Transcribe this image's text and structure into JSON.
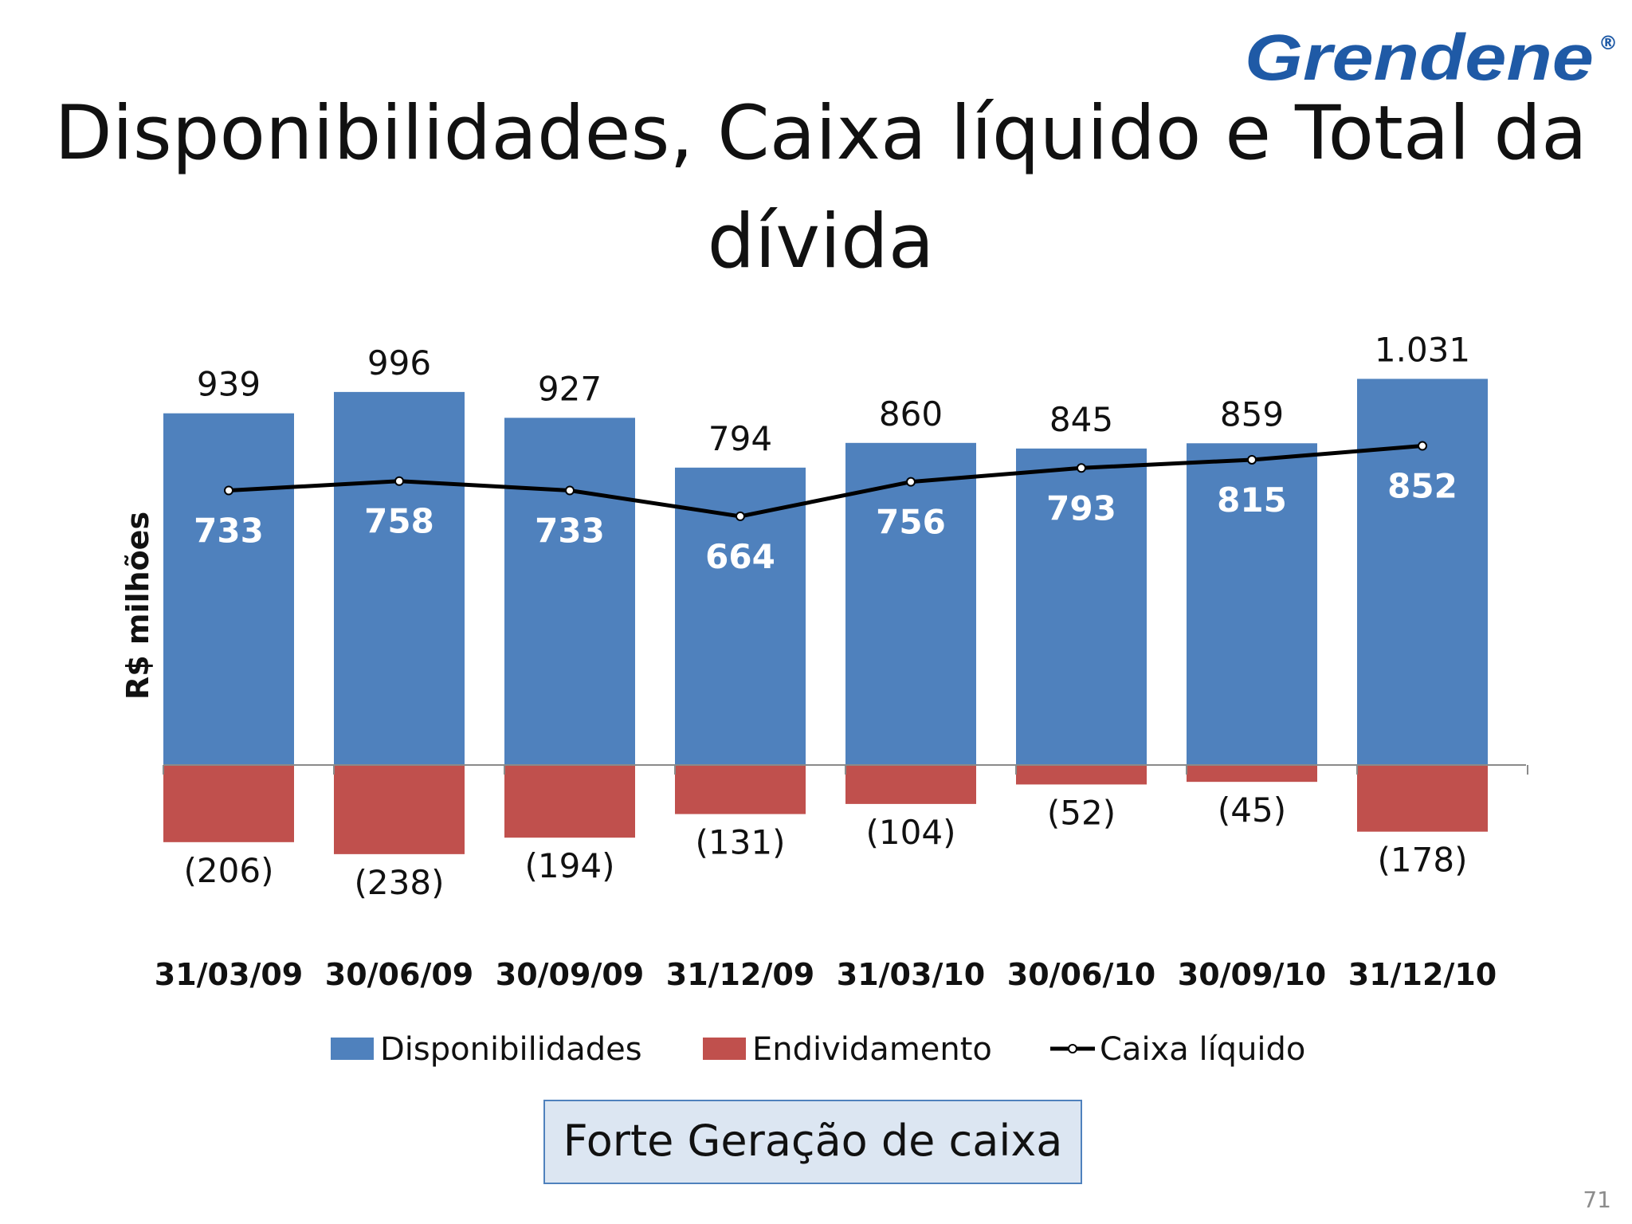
{
  "brand": {
    "logo_text": "Grendene",
    "logo_mark": "®",
    "logo_color": "#1f5aa6"
  },
  "title": "Disponibilidades, Caixa líquido e Total da dívida",
  "callout": "Forte Geração de caixa",
  "page_number": "71",
  "chart_data": {
    "type": "bar",
    "ylabel": "R$ milhões",
    "categories": [
      "31/03/09",
      "30/06/09",
      "30/09/09",
      "31/12/09",
      "31/03/10",
      "30/06/10",
      "30/09/10",
      "31/12/10"
    ],
    "series": [
      {
        "name": "Disponibilidades",
        "type": "bar",
        "color": "#4f81bd",
        "values": [
          939,
          996,
          927,
          794,
          860,
          845,
          859,
          1031
        ],
        "labels": [
          "939",
          "996",
          "927",
          "794",
          "860",
          "845",
          "859",
          "1.031"
        ]
      },
      {
        "name": "Endividamento",
        "type": "bar",
        "color": "#c0504d",
        "values": [
          -206,
          -238,
          -194,
          -131,
          -104,
          -52,
          -45,
          -178
        ],
        "labels": [
          "(206)",
          "(238)",
          "(194)",
          "(131)",
          "(104)",
          "(52)",
          "(45)",
          "(178)"
        ]
      },
      {
        "name": "Caixa líquido",
        "type": "line",
        "color": "#000000",
        "values": [
          733,
          758,
          733,
          664,
          756,
          793,
          815,
          852
        ],
        "labels": [
          "733",
          "758",
          "733",
          "664",
          "756",
          "793",
          "815",
          "852"
        ]
      }
    ],
    "legend": "bottom",
    "grid": false
  }
}
